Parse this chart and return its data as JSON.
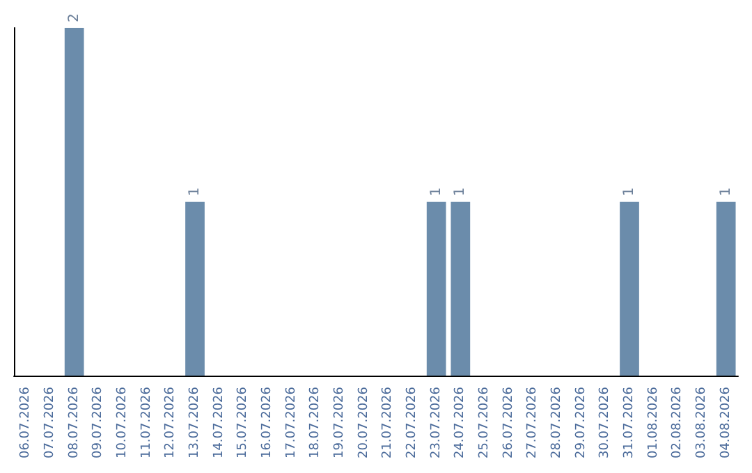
{
  "chart_data": {
    "type": "bar",
    "categories": [
      "06.07.2026",
      "07.07.2026",
      "08.07.2026",
      "09.07.2026",
      "10.07.2026",
      "11.07.2026",
      "12.07.2026",
      "13.07.2026",
      "14.07.2026",
      "15.07.2026",
      "16.07.2026",
      "17.07.2026",
      "18.07.2026",
      "19.07.2026",
      "20.07.2026",
      "21.07.2026",
      "22.07.2026",
      "23.07.2026",
      "24.07.2026",
      "25.07.2026",
      "26.07.2026",
      "27.07.2026",
      "28.07.2026",
      "29.07.2026",
      "30.07.2026",
      "31.07.2026",
      "01.08.2026",
      "02.08.2026",
      "03.08.2026",
      "04.08.2026"
    ],
    "values": [
      0,
      0,
      2,
      0,
      0,
      0,
      0,
      1,
      0,
      0,
      0,
      0,
      0,
      0,
      0,
      0,
      0,
      1,
      1,
      0,
      0,
      0,
      0,
      0,
      0,
      1,
      0,
      0,
      0,
      1
    ],
    "value_labels": [
      null,
      null,
      "2",
      null,
      null,
      null,
      null,
      "1",
      null,
      null,
      null,
      null,
      null,
      null,
      null,
      null,
      null,
      "1",
      "1",
      null,
      null,
      null,
      null,
      null,
      null,
      "1",
      null,
      null,
      null,
      "1"
    ],
    "color": "#6b8cab",
    "tick_labels": "x"
  }
}
